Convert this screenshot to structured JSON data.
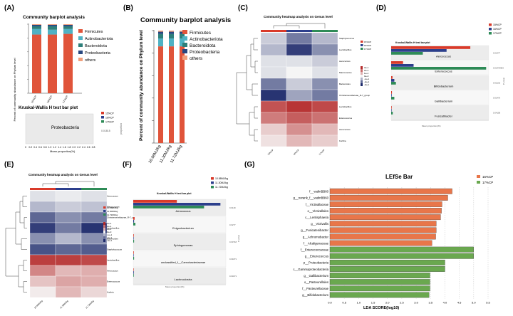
{
  "colors": {
    "firmicutes": "#e0543a",
    "actinobacteriota": "#4fb2c4",
    "bacteroidota": "#2e7f7a",
    "proteobacteria": "#27477f",
    "others": "#f0a07c",
    "g1": "#d93a2a",
    "g2": "#2c3f8c",
    "g3": "#2e8b57",
    "lefse_red": "#e8764a",
    "lefse_green": "#6aa84f",
    "heat_high": "#b52b2b",
    "heat_low": "#1d2a6b",
    "heat_mid": "#f3f3f3"
  },
  "labels": {
    "A": "(A)",
    "B": "(B)",
    "C": "(C)",
    "D": "(D)",
    "E": "(E)",
    "F": "(F)",
    "G": "(G)"
  },
  "panelA": {
    "title": "Community barplot analysis",
    "ylabel": "Percent of community abundance on Phylum level",
    "legend": [
      "Firmicutes",
      "Actinobacteriota",
      "Bacteroidota",
      "Proteobacteria",
      "others"
    ],
    "kw_title": "Kruskal-Wallis H test bar plot",
    "kw_category": "Proteobacteria",
    "kw_pvalue": "0.01815",
    "kw_xlabel": "Mean proportion(%)",
    "kw_legend": [
      "15%CP",
      "16%CP",
      "17%CP"
    ],
    "kw_ticks": [
      "0",
      "0.2",
      "0.4",
      "0.6",
      "0.8",
      "1.0",
      "1.2",
      "1.4",
      "1.6",
      "1.8",
      "2.0",
      "2.2",
      "2.4",
      "2.6",
      "2.8"
    ],
    "side_label": "proportion"
  },
  "panelB": {
    "title": "Community barplot analysis",
    "ylabel": "Percent of community abundance on Phylum level",
    "legend": [
      "Firmicutes",
      "Actinobacteriota",
      "Bacteroidota",
      "Proteobacteria",
      "others"
    ]
  },
  "panelC": {
    "title": "Community heatmap analysis on Genus level",
    "rows": [
      "Staphylococcus",
      "Lactobacillus",
      "Aerococcus",
      "Macrococcus",
      "Bacteroides",
      "Christensenellaceae_R-7_group",
      "Lactobacillus",
      "Enterococcus",
      "Aerococcus",
      "Kurthia"
    ],
    "cols": [
      "15%CP",
      "16%CP",
      "17%CP"
    ],
    "legend": [
      "15%CP",
      "16%CP",
      "17%CP"
    ],
    "scale": [
      "3e+1",
      "2e+1",
      "1e+1",
      "0e+0",
      "-1e+1",
      "-2e+1",
      "-3e+1"
    ]
  },
  "panelD": {
    "kw_title": "Kruskal-Wallis H test bar plot",
    "legend": [
      "15%CP",
      "16%CP",
      "17%CP"
    ],
    "categories": [
      "Aerococcus",
      "Enterococcus",
      "Bifidobacterium",
      "Gallibacterium",
      "Fusicatibacter"
    ],
    "pvalues": [
      "0.01477",
      "0.01476983",
      "0.02132",
      "0.01476",
      "0.04158"
    ],
    "xlabel": "Mean proportion(%)",
    "side_label": "P-value"
  },
  "panelE": {
    "title": "Community heatmap analysis on Genus level",
    "rows": [
      "Aerococcus",
      "Macrococcus",
      "Christensenellaceae_R-7_group",
      "Lactobacillus",
      "Bacteroides",
      "Staphylococcus",
      "Lactobacillus",
      "Aerococcus",
      "Enterococcus",
      "Kurthia"
    ],
    "cols": [
      "10.88MJ/kg",
      "11.30MJ/kg",
      "11.72MJ/kg"
    ],
    "legend": [
      "10.88MJ/kg",
      "11.30MJ/kg",
      "11.72MJ/kg"
    ],
    "scale": [
      "3e+1",
      "2e+1",
      "1e+1",
      "0e+0",
      "-1e+1",
      "-2e+1",
      "-3e+1"
    ]
  },
  "panelF": {
    "kw_title": "Kruskal-Wallis H test bar plot",
    "legend": [
      "10.88MJ/kg",
      "11.30MJ/kg",
      "11.72MJ/kg"
    ],
    "categories": [
      "Aerococcus",
      "Exiguobacterium",
      "Sphingomonas",
      "unclassified_f__Carnobacteriaceae",
      "Lachnoclostra"
    ],
    "pvalues": [
      "0.0149",
      "0.0277",
      "0.03718",
      "0.01871",
      "0.03271"
    ],
    "xlabel": "Mean proportion(%)",
    "side_label": "P-value"
  },
  "panelG": {
    "title": "LEfSe Bar",
    "xlabel": "LDA SCORE(log10)",
    "legend": [
      "15%CP",
      "17%CP"
    ],
    "xticks": [
      "0.0",
      "0.5",
      "1.0",
      "1.5",
      "2.0",
      "2.5",
      "3.0",
      "3.5",
      "4.0",
      "4.5",
      "5.0",
      "5.5"
    ]
  },
  "chart_data": [
    {
      "type": "bar",
      "stacked": true,
      "id": "A",
      "title": "Community barplot analysis",
      "categories": [
        "15%CP",
        "16%CP",
        "17%CP"
      ],
      "ylabel": "Percent of community abundance on Phylum level",
      "ylim": [
        0,
        1
      ],
      "series": [
        {
          "name": "Firmicutes",
          "values": [
            0.85,
            0.85,
            0.86
          ]
        },
        {
          "name": "Actinobacteriota",
          "values": [
            0.08,
            0.07,
            0.07
          ]
        },
        {
          "name": "Bacteroidota",
          "values": [
            0.04,
            0.05,
            0.04
          ]
        },
        {
          "name": "Proteobacteria",
          "values": [
            0.02,
            0.02,
            0.02
          ]
        },
        {
          "name": "others",
          "values": [
            0.01,
            0.01,
            0.01
          ]
        }
      ]
    },
    {
      "type": "bar",
      "orientation": "horizontal",
      "id": "A-kw",
      "title": "Kruskal-Wallis H test bar plot",
      "categories": [
        "Proteobacteria"
      ],
      "series": [
        {
          "name": "15%CP",
          "values": [
            0.2
          ]
        },
        {
          "name": "16%CP",
          "values": [
            0.8
          ]
        },
        {
          "name": "17%CP",
          "values": [
            2.6
          ]
        }
      ],
      "xlabel": "Mean proportion(%)",
      "xlim": [
        0,
        2.8
      ]
    },
    {
      "type": "bar",
      "stacked": true,
      "id": "B",
      "title": "Community barplot analysis",
      "categories": [
        "10.88MJ/kg",
        "11.30MJ/kg",
        "11.72MJ/kg"
      ],
      "ylabel": "Percent of community abundance on Phylum level",
      "ylim": [
        0,
        1
      ],
      "series": [
        {
          "name": "Firmicutes",
          "values": [
            0.86,
            0.86,
            0.86
          ]
        },
        {
          "name": "Actinobacteriota",
          "values": [
            0.07,
            0.07,
            0.07
          ]
        },
        {
          "name": "Bacteroidota",
          "values": [
            0.04,
            0.04,
            0.04
          ]
        },
        {
          "name": "Proteobacteria",
          "values": [
            0.02,
            0.02,
            0.02
          ]
        },
        {
          "name": "others",
          "values": [
            0.01,
            0.01,
            0.01
          ]
        }
      ]
    },
    {
      "type": "heatmap",
      "id": "C",
      "title": "Community heatmap analysis on Genus level",
      "rows": [
        "Staphylococcus",
        "Lactobacillus",
        "Aerococcus",
        "Macrococcus",
        "Bacteroides",
        "Christensenellaceae_R-7_group",
        "Lactobacillus",
        "Enterococcus",
        "Aerococcus",
        "Kurthia"
      ],
      "cols": [
        "15%CP",
        "16%CP",
        "17%CP"
      ],
      "values": [
        [
          -0.2,
          -0.6,
          -0.3
        ],
        [
          -0.3,
          -0.9,
          -0.5
        ],
        [
          -0.1,
          -0.1,
          -0.2
        ],
        [
          -0.1,
          0,
          -0.1
        ],
        [
          -0.6,
          -0.2,
          -0.5
        ],
        [
          -0.95,
          -0.4,
          -0.6
        ],
        [
          0.8,
          0.95,
          0.85
        ],
        [
          0.6,
          0.75,
          0.65
        ],
        [
          0.2,
          0.5,
          0.3
        ],
        [
          0.1,
          0.3,
          0.2
        ]
      ]
    },
    {
      "type": "bar",
      "orientation": "horizontal",
      "id": "D",
      "title": "Kruskal-Wallis H test bar plot",
      "categories": [
        "Aerococcus",
        "Enterococcus",
        "Bifidobacterium",
        "Gallibacterium",
        "Fusicatibacter"
      ],
      "series": [
        {
          "name": "15%CP",
          "values": [
            3.0,
            0.45,
            0.05,
            0.03,
            0.02
          ]
        },
        {
          "name": "16%CP",
          "values": [
            2.1,
            0.85,
            0.12,
            0.02,
            0.01
          ]
        },
        {
          "name": "17%CP",
          "values": [
            1.2,
            3.6,
            0.18,
            0.12,
            0.06
          ]
        }
      ],
      "xlabel": "Mean proportion(%)"
    },
    {
      "type": "heatmap",
      "id": "E",
      "title": "Community heatmap analysis on Genus level",
      "rows": [
        "Aerococcus",
        "Macrococcus",
        "Christensenellaceae_R-7_group",
        "Lactobacillus",
        "Bacteroides",
        "Staphylococcus",
        "Lactobacillus",
        "Aerococcus",
        "Enterococcus",
        "Kurthia"
      ],
      "cols": [
        "10.88MJ/kg",
        "11.30MJ/kg",
        "11.72MJ/kg"
      ],
      "values": [
        [
          -0.1,
          -0.05,
          -0.1
        ],
        [
          -0.3,
          -0.2,
          -0.25
        ],
        [
          -0.7,
          -0.5,
          -0.6
        ],
        [
          -0.9,
          -0.6,
          -0.95
        ],
        [
          -0.5,
          -0.3,
          -0.5
        ],
        [
          -0.8,
          -0.7,
          -0.75
        ],
        [
          0.9,
          0.9,
          0.85
        ],
        [
          0.55,
          0.3,
          0.35
        ],
        [
          0.25,
          0.4,
          0.35
        ],
        [
          0.05,
          0.3,
          0.15
        ]
      ]
    },
    {
      "type": "bar",
      "orientation": "horizontal",
      "id": "F",
      "title": "Kruskal-Wallis H test bar plot",
      "categories": [
        "Aerococcus",
        "Exiguobacterium",
        "Sphingomonas",
        "unclassified_f__Carnobacteriaceae",
        "Lachnoclostra"
      ],
      "series": [
        {
          "name": "10.88MJ/kg",
          "values": [
            1.6,
            0.05,
            0.02,
            0.02,
            0.01
          ]
        },
        {
          "name": "11.30MJ/kg",
          "values": [
            3.2,
            0.03,
            0.01,
            0.01,
            0.02
          ]
        },
        {
          "name": "11.72MJ/kg",
          "values": [
            2.6,
            0.08,
            0.03,
            0.03,
            0.02
          ]
        }
      ],
      "xlabel": "Mean proportion(%)"
    },
    {
      "type": "bar",
      "orientation": "horizontal",
      "id": "G",
      "title": "LEfSe Bar",
      "xlabel": "LDA SCORE(log10)",
      "xlim": [
        0,
        5.5
      ],
      "categories": [
        "f__vadinBB60",
        "g__norank_f__vadinBB60",
        "f__Victivallaceae",
        "o__Victivallales",
        "c__Lentisphaeria",
        "g__Victivallis",
        "g__Fusicatenibacter",
        "g__Achromobacter",
        "f__Alcaligenaceae",
        "f__Enterococcaceae",
        "g__Enterococcus",
        "p__Proteobacteria",
        "c__Gammaproteobacteria",
        "g__Gallibacterium",
        "o__Pasteurellales",
        "f__Pasteurellaceae",
        "g__Bifidobacterium"
      ],
      "values": [
        4.25,
        4.1,
        3.9,
        3.88,
        3.85,
        3.7,
        3.7,
        3.68,
        3.55,
        5.0,
        5.0,
        4.0,
        4.0,
        3.48,
        3.48,
        3.48,
        3.45
      ],
      "groups": [
        "15%CP",
        "15%CP",
        "15%CP",
        "15%CP",
        "15%CP",
        "15%CP",
        "15%CP",
        "15%CP",
        "15%CP",
        "17%CP",
        "17%CP",
        "17%CP",
        "17%CP",
        "17%CP",
        "17%CP",
        "17%CP",
        "17%CP"
      ]
    }
  ]
}
